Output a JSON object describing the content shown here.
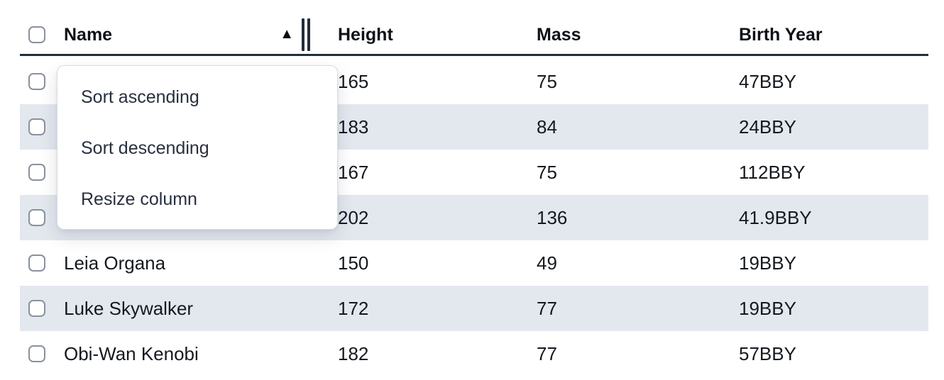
{
  "table": {
    "columns": [
      {
        "label": "Name",
        "sorted": "ascending"
      },
      {
        "label": "Height"
      },
      {
        "label": "Mass"
      },
      {
        "label": "Birth Year"
      }
    ],
    "rows": [
      {
        "name": "",
        "height": "165",
        "mass": "75",
        "birth_year": "47BBY"
      },
      {
        "name": "",
        "height": "183",
        "mass": "84",
        "birth_year": "24BBY"
      },
      {
        "name": "",
        "height": "167",
        "mass": "75",
        "birth_year": "112BBY"
      },
      {
        "name": "",
        "height": "202",
        "mass": "136",
        "birth_year": "41.9BBY"
      },
      {
        "name": "Leia Organa",
        "height": "150",
        "mass": "49",
        "birth_year": "19BBY"
      },
      {
        "name": "Luke Skywalker",
        "height": "172",
        "mass": "77",
        "birth_year": "19BBY"
      },
      {
        "name": "Obi-Wan Kenobi",
        "height": "182",
        "mass": "77",
        "birth_year": "57BBY"
      }
    ]
  },
  "column_menu": {
    "open_for_column": "Name",
    "items": [
      {
        "label": "Sort ascending"
      },
      {
        "label": "Sort descending"
      },
      {
        "label": "Resize column"
      }
    ]
  },
  "icons": {
    "sort_ascending": "▲"
  },
  "colors": {
    "header_border": "#232d3d",
    "row_stripe": "#e3e8ef",
    "cell_text": "#15191f",
    "menu_text": "#28303e",
    "checkbox_border": "#8a919e"
  }
}
